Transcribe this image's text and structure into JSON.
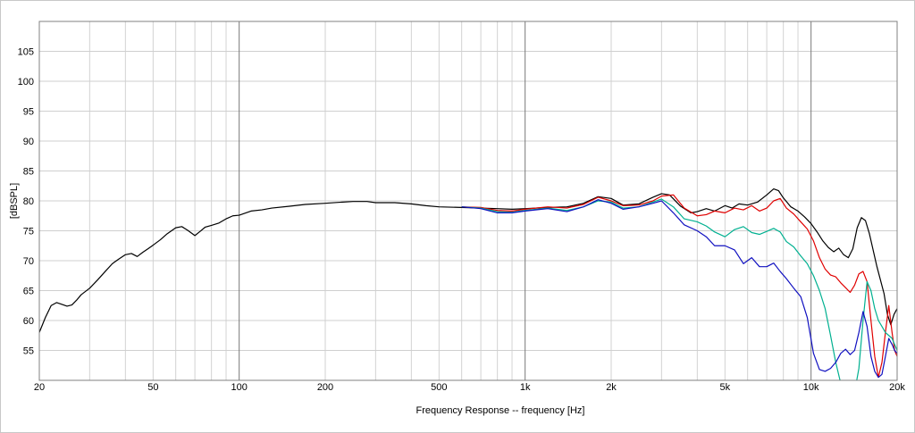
{
  "chart_data": {
    "type": "line",
    "title": "",
    "xlabel": "Frequency Response -- frequency [Hz]",
    "ylabel": "[dBSPL]",
    "x_scale": "log",
    "xlim": [
      20,
      20000
    ],
    "ylim": [
      50,
      110
    ],
    "grid": true,
    "x_ticks": [
      {
        "value": 20,
        "label": "20"
      },
      {
        "value": 50,
        "label": "50"
      },
      {
        "value": 100,
        "label": "100"
      },
      {
        "value": 200,
        "label": "200"
      },
      {
        "value": 500,
        "label": "500"
      },
      {
        "value": 1000,
        "label": "1k"
      },
      {
        "value": 2000,
        "label": "2k"
      },
      {
        "value": 5000,
        "label": "5k"
      },
      {
        "value": 10000,
        "label": "10k"
      },
      {
        "value": 20000,
        "label": "20k"
      }
    ],
    "y_ticks": [
      {
        "value": 55,
        "label": "55"
      },
      {
        "value": 60,
        "label": "60"
      },
      {
        "value": 65,
        "label": "65"
      },
      {
        "value": 70,
        "label": "70"
      },
      {
        "value": 75,
        "label": "75"
      },
      {
        "value": 80,
        "label": "80"
      },
      {
        "value": 85,
        "label": "85"
      },
      {
        "value": 90,
        "label": "90"
      },
      {
        "value": 95,
        "label": "95"
      },
      {
        "value": 100,
        "label": "100"
      },
      {
        "value": 105,
        "label": "105"
      }
    ],
    "series": [
      {
        "color": "#000000",
        "x": [
          20,
          21,
          22,
          23,
          24,
          25,
          26,
          27,
          28,
          30,
          32,
          34,
          36,
          38,
          40,
          42,
          44,
          46,
          48,
          50,
          53,
          56,
          60,
          63,
          66,
          70,
          73,
          76,
          80,
          85,
          90,
          95,
          100,
          110,
          120,
          130,
          150,
          170,
          200,
          230,
          250,
          280,
          300,
          350,
          400,
          450,
          500,
          600,
          700,
          800,
          900,
          1000,
          1200,
          1400,
          1600,
          1800,
          2000,
          2200,
          2500,
          2800,
          3000,
          3200,
          3500,
          3800,
          4000,
          4300,
          4600,
          5000,
          5300,
          5600,
          6000,
          6500,
          7000,
          7400,
          7700,
          8000,
          8500,
          9000,
          9500,
          10000,
          10500,
          11000,
          11500,
          12000,
          12500,
          13000,
          13500,
          14000,
          14500,
          15000,
          15500,
          16000,
          17000,
          18000,
          18500,
          19000,
          19500,
          20000
        ],
        "y": [
          58.0,
          60.5,
          62.5,
          63.0,
          62.7,
          62.4,
          62.6,
          63.4,
          64.3,
          65.4,
          66.8,
          68.2,
          69.5,
          70.3,
          71.0,
          71.2,
          70.7,
          71.4,
          72.0,
          72.6,
          73.5,
          74.5,
          75.5,
          75.7,
          75.1,
          74.2,
          74.9,
          75.6,
          75.9,
          76.3,
          77.0,
          77.5,
          77.6,
          78.3,
          78.5,
          78.8,
          79.1,
          79.4,
          79.6,
          79.8,
          79.9,
          79.9,
          79.7,
          79.7,
          79.5,
          79.2,
          79.0,
          78.9,
          78.8,
          78.7,
          78.6,
          78.7,
          78.9,
          79.0,
          79.6,
          80.7,
          80.4,
          79.3,
          79.5,
          80.6,
          81.2,
          81.0,
          79.1,
          78.0,
          78.2,
          78.7,
          78.3,
          79.2,
          78.8,
          79.5,
          79.3,
          79.8,
          81.0,
          82.0,
          81.7,
          80.5,
          79.0,
          78.3,
          77.3,
          76.2,
          74.8,
          73.3,
          72.2,
          71.5,
          72.1,
          71.0,
          70.5,
          72.0,
          75.5,
          77.2,
          76.7,
          74.5,
          69.0,
          64.5,
          61.0,
          59.3,
          61.0,
          62.0
        ]
      },
      {
        "color": "#e00000",
        "x": [
          600,
          700,
          800,
          900,
          1000,
          1200,
          1400,
          1600,
          1800,
          2000,
          2200,
          2500,
          2800,
          3000,
          3300,
          3600,
          4000,
          4300,
          4600,
          5000,
          5400,
          5800,
          6200,
          6600,
          7000,
          7400,
          7800,
          8200,
          8700,
          9200,
          9700,
          10200,
          10700,
          11200,
          11700,
          12200,
          12700,
          13200,
          13700,
          14200,
          14700,
          15200,
          15700,
          16200,
          16700,
          17200,
          17700,
          18200,
          18700,
          19200,
          19600,
          20000
        ],
        "y": [
          79.0,
          78.9,
          78.4,
          78.3,
          78.6,
          79.0,
          78.8,
          79.4,
          80.6,
          80.0,
          79.2,
          79.3,
          80.0,
          80.8,
          81.0,
          78.8,
          77.5,
          77.7,
          78.3,
          78.0,
          78.8,
          78.5,
          79.2,
          78.3,
          78.8,
          80.0,
          80.4,
          78.8,
          77.8,
          76.5,
          75.3,
          73.3,
          70.5,
          68.6,
          67.6,
          67.3,
          66.3,
          65.5,
          64.7,
          65.9,
          67.8,
          68.2,
          66.5,
          60.0,
          54.0,
          50.5,
          53.0,
          58.0,
          62.5,
          58.0,
          55.0,
          54.0
        ]
      },
      {
        "color": "#00b090",
        "x": [
          600,
          700,
          800,
          900,
          1000,
          1200,
          1400,
          1600,
          1800,
          2000,
          2200,
          2500,
          2800,
          3000,
          3300,
          3600,
          4000,
          4300,
          4600,
          5000,
          5400,
          5800,
          6200,
          6600,
          7000,
          7400,
          7800,
          8200,
          8700,
          9200,
          9700,
          10200,
          10700,
          11200,
          11700,
          12200,
          12700,
          13200,
          13700,
          14200,
          14700,
          15200,
          15700,
          16200,
          16700,
          17200,
          17700,
          18200,
          18700,
          19200,
          19600,
          20000
        ],
        "y": [
          79.0,
          78.8,
          78.2,
          78.1,
          78.4,
          78.8,
          78.4,
          79.0,
          80.0,
          79.8,
          78.8,
          79.0,
          79.8,
          80.3,
          79.0,
          77.0,
          76.5,
          75.8,
          74.8,
          74.0,
          75.2,
          75.7,
          74.7,
          74.4,
          74.9,
          75.4,
          74.8,
          73.2,
          72.3,
          70.8,
          69.5,
          67.5,
          65.0,
          62.0,
          57.5,
          53.0,
          49.5,
          47.0,
          46.5,
          48.0,
          52.0,
          60.0,
          66.5,
          65.0,
          62.0,
          60.0,
          59.0,
          58.0,
          57.5,
          57.0,
          56.0,
          55.0
        ]
      },
      {
        "color": "#1010c0",
        "x": [
          600,
          700,
          800,
          900,
          1000,
          1200,
          1400,
          1600,
          1800,
          2000,
          2200,
          2500,
          2800,
          3000,
          3300,
          3600,
          4000,
          4300,
          4600,
          5000,
          5400,
          5800,
          6200,
          6600,
          7000,
          7400,
          7800,
          8200,
          8700,
          9200,
          9700,
          10200,
          10700,
          11200,
          11700,
          12200,
          12700,
          13200,
          13700,
          14200,
          14700,
          15200,
          15700,
          16200,
          16700,
          17200,
          17700,
          18200,
          18700,
          19200,
          19600,
          20000
        ],
        "y": [
          79.0,
          78.7,
          78.0,
          78.0,
          78.3,
          78.7,
          78.2,
          79.0,
          80.2,
          79.6,
          78.6,
          79.0,
          79.6,
          80.0,
          78.0,
          76.0,
          75.0,
          74.0,
          72.5,
          72.5,
          71.8,
          69.5,
          70.5,
          69.0,
          69.0,
          69.6,
          68.2,
          67.0,
          65.4,
          64.0,
          60.5,
          54.5,
          51.8,
          51.5,
          52.0,
          53.0,
          54.5,
          55.2,
          54.3,
          55.0,
          58.0,
          61.5,
          59.0,
          54.0,
          51.5,
          50.5,
          51.0,
          54.0,
          57.0,
          56.0,
          55.0,
          54.5
        ]
      }
    ]
  }
}
